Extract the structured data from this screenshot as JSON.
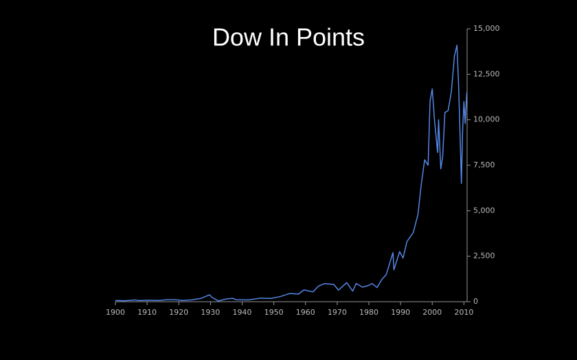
{
  "chart_data": {
    "type": "line",
    "title": "Dow In Points",
    "x": [
      1900,
      1903,
      1906,
      1907.8,
      1910,
      1914,
      1916,
      1919,
      1921,
      1924,
      1927,
      1929.7,
      1930.5,
      1932.5,
      1935,
      1937,
      1938,
      1942,
      1946,
      1949,
      1952,
      1955,
      1957.8,
      1959.5,
      1962.4,
      1964,
      1966,
      1968.9,
      1970.4,
      1973,
      1974.9,
      1976,
      1978,
      1980,
      1981,
      1982.6,
      1984,
      1985.5,
      1987.6,
      1987.9,
      1989.7,
      1990.8,
      1992,
      1994,
      1995.5,
      1996.5,
      1997.6,
      1998.7,
      1999.3,
      2000,
      2000.7,
      2001.7,
      2002,
      2002.7,
      2003.3,
      2004,
      2005,
      2006,
      2007,
      2007.8,
      2008.3,
      2008.9,
      2009.2,
      2009.6,
      2010,
      2010.4,
      2010.9
    ],
    "series": [
      {
        "name": "Dow",
        "color": "#5588e8",
        "values": [
          66,
          50,
          100,
          60,
          85,
          70,
          110,
          110,
          70,
          100,
          180,
          381,
          240,
          41,
          150,
          190,
          110,
          100,
          200,
          180,
          280,
          450,
          420,
          650,
          540,
          850,
          995,
          950,
          640,
          1050,
          580,
          1000,
          800,
          900,
          1000,
          780,
          1200,
          1500,
          2700,
          1750,
          2750,
          2400,
          3300,
          3800,
          4800,
          6400,
          7800,
          7500,
          11000,
          11700,
          10000,
          8200,
          10000,
          7300,
          8000,
          10400,
          10500,
          11500,
          13500,
          14100,
          12000,
          8500,
          6500,
          9500,
          11000,
          9800,
          11500
        ]
      }
    ],
    "xlim": [
      1900,
      2011
    ],
    "ylim": [
      0,
      15000
    ],
    "xticks": [
      1900,
      1910,
      1920,
      1930,
      1940,
      1950,
      1960,
      1970,
      1980,
      1990,
      2000,
      2010
    ],
    "yticks": [
      0,
      {
        "value": 2500,
        "label": "2,500"
      },
      {
        "value": 5000,
        "label": "5,000"
      },
      {
        "value": 7500,
        "label": "7,500"
      },
      {
        "value": 10000,
        "label": "10,000"
      },
      {
        "value": 12500,
        "label": "12,500"
      },
      {
        "value": 15000,
        "label": "15,000"
      }
    ]
  }
}
